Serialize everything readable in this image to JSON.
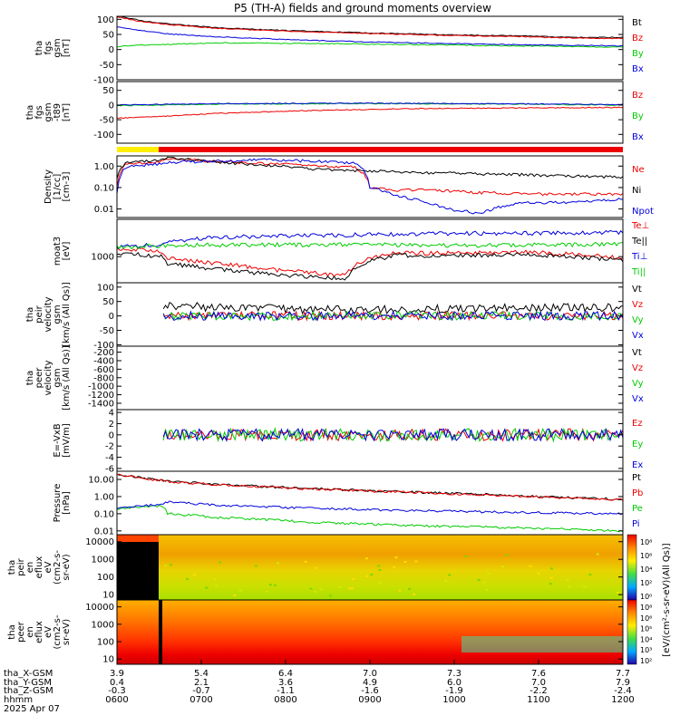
{
  "title": "P5 (TH-A) fields and ground moments overview",
  "colors": {
    "black": "#000000",
    "red": "#ee0000",
    "green": "#00cc00",
    "blue": "#0000dd",
    "yellow": "#ffee00"
  },
  "chart_data": [
    {
      "type": "line",
      "panel": "fgs",
      "ylabel": [
        "tha",
        "fgs",
        "gsm",
        "[nT]"
      ],
      "yticks": [
        "100",
        "50",
        "0",
        "-50",
        "-100"
      ],
      "ylim": [
        -100,
        110
      ],
      "series": [
        {
          "name": "Bt",
          "color": "black",
          "x": [
            0,
            0.05,
            0.1,
            0.2,
            0.35,
            0.5,
            0.65,
            0.8,
            0.9,
            1
          ],
          "values": [
            112,
            95,
            85,
            72,
            62,
            55,
            49,
            45,
            40,
            40
          ]
        },
        {
          "name": "Bz",
          "color": "red",
          "x": [
            0,
            0.05,
            0.1,
            0.2,
            0.35,
            0.5,
            0.65,
            0.8,
            0.9,
            1
          ],
          "values": [
            108,
            92,
            83,
            70,
            60,
            53,
            47,
            43,
            38,
            37
          ]
        },
        {
          "name": "By",
          "color": "green",
          "x": [
            0,
            0.05,
            0.2,
            0.4,
            0.6,
            0.8,
            1
          ],
          "values": [
            10,
            15,
            22,
            20,
            16,
            12,
            8
          ]
        },
        {
          "name": "Bx",
          "color": "blue",
          "x": [
            0,
            0.05,
            0.1,
            0.2,
            0.35,
            0.5,
            0.65,
            0.8,
            1
          ],
          "values": [
            75,
            62,
            52,
            42,
            32,
            25,
            20,
            16,
            12
          ]
        }
      ]
    },
    {
      "type": "line",
      "panel": "fgs-detrended",
      "ylabel": [
        "tha",
        "fgs",
        "gsm",
        "-t89",
        "[nT]"
      ],
      "yticks": [
        "100",
        "50",
        "0",
        "-50",
        "-100"
      ],
      "ylim": [
        -130,
        80
      ],
      "series": [
        {
          "name": "Bz",
          "color": "red",
          "x": [
            0,
            0.1,
            0.2,
            0.4,
            0.6,
            0.8,
            1
          ],
          "values": [
            -45,
            -38,
            -28,
            -18,
            -12,
            -10,
            -8
          ]
        },
        {
          "name": "By",
          "color": "green",
          "x": [
            0,
            0.2,
            0.5,
            0.8,
            1
          ],
          "values": [
            -2,
            3,
            5,
            3,
            0
          ]
        },
        {
          "name": "Bx",
          "color": "blue",
          "x": [
            0,
            0.2,
            0.5,
            0.8,
            1
          ],
          "values": [
            0,
            5,
            6,
            4,
            2
          ]
        }
      ]
    },
    {
      "type": "line",
      "panel": "density",
      "scale": "log",
      "ylabel": [
        "Density",
        "[1/cc]",
        "[cm-3]"
      ],
      "yticks": [
        "1.00",
        "0.10",
        "0.01"
      ],
      "ylim": [
        0.004,
        3
      ],
      "series": [
        {
          "name": "Ne",
          "color": "red",
          "x": [
            0,
            0.02,
            0.09,
            0.1,
            0.2,
            0.4,
            0.47,
            0.5,
            0.55,
            0.6,
            0.7,
            0.8,
            0.9,
            1
          ],
          "values": [
            0.1,
            1.3,
            1.6,
            2.2,
            1.6,
            1.0,
            0.9,
            0.1,
            0.07,
            0.08,
            0.06,
            0.05,
            0.05,
            0.05
          ]
        },
        {
          "name": "Ni",
          "color": "black",
          "x": [
            0,
            0.02,
            0.09,
            0.1,
            0.2,
            0.4,
            0.6,
            0.8,
            1
          ],
          "values": [
            0.3,
            1.6,
            1.9,
            2.4,
            1.5,
            0.7,
            0.5,
            0.4,
            0.3
          ]
        },
        {
          "name": "Npot",
          "color": "blue",
          "x": [
            0,
            0.02,
            0.09,
            0.1,
            0.3,
            0.47,
            0.5,
            0.55,
            0.65,
            0.72,
            0.8,
            0.9,
            1
          ],
          "values": [
            0.05,
            1.0,
            1.3,
            1.5,
            2.0,
            1.4,
            0.1,
            0.04,
            0.01,
            0.006,
            0.02,
            0.02,
            0.03
          ]
        }
      ]
    },
    {
      "type": "line",
      "panel": "temperature",
      "scale": "log",
      "ylabel": [
        "moat3",
        "[eV]"
      ],
      "yticks": [
        "1000"
      ],
      "ylim": [
        150,
        15000
      ],
      "series": [
        {
          "name": "Te⊥",
          "color": "red",
          "x": [
            0,
            0.09,
            0.1,
            0.2,
            0.3,
            0.45,
            0.5,
            0.55,
            0.7,
            0.8,
            0.9,
            1
          ],
          "values": [
            1800,
            1500,
            900,
            600,
            400,
            250,
            900,
            1300,
            1300,
            1400,
            1200,
            900
          ]
        },
        {
          "name": "Te||",
          "color": "black",
          "x": [
            0,
            0.09,
            0.1,
            0.2,
            0.3,
            0.45,
            0.5,
            0.55,
            0.7,
            0.8,
            0.9,
            1
          ],
          "values": [
            1300,
            1000,
            600,
            400,
            280,
            200,
            700,
            1100,
            1100,
            1200,
            1000,
            800
          ]
        },
        {
          "name": "Ti⊥",
          "color": "blue",
          "x": [
            0,
            0.09,
            0.1,
            0.2,
            0.3,
            0.5,
            0.7,
            0.9,
            1
          ],
          "values": [
            2000,
            2400,
            3000,
            4000,
            4500,
            5000,
            5500,
            5500,
            6000
          ]
        },
        {
          "name": "Ti||",
          "color": "green",
          "x": [
            0,
            0.09,
            0.1,
            0.3,
            0.5,
            0.7,
            0.9,
            1
          ],
          "values": [
            2000,
            2200,
            2300,
            2400,
            2400,
            2300,
            2400,
            2500
          ]
        }
      ]
    },
    {
      "type": "line",
      "panel": "peir-velocity",
      "ylabel": [
        "tha",
        "peir",
        "velocity",
        "gsm",
        "[km/s (All Qs)]"
      ],
      "yticks": [
        "100",
        "50",
        "0",
        "-50",
        "-100"
      ],
      "ylim": [
        -105,
        115
      ],
      "series": [
        {
          "name": "Vt",
          "color": "black",
          "x": [
            0.09,
            0.3,
            0.5,
            0.7,
            1
          ],
          "values": [
            35,
            25,
            20,
            25,
            30
          ]
        },
        {
          "name": "Vz",
          "color": "red",
          "x": [
            0.09,
            0.3,
            0.5,
            0.7,
            1
          ],
          "values": [
            0,
            0,
            0,
            0,
            0
          ]
        },
        {
          "name": "Vy",
          "color": "green",
          "x": [
            0.09,
            0.3,
            0.5,
            0.7,
            1
          ],
          "values": [
            0,
            0,
            0,
            0,
            0
          ]
        },
        {
          "name": "Vx",
          "color": "blue",
          "x": [
            0.09,
            0.3,
            0.5,
            0.7,
            1
          ],
          "values": [
            0,
            0,
            0,
            0,
            0
          ]
        }
      ]
    },
    {
      "type": "line",
      "panel": "peer-velocity",
      "ylabel": [
        "tha",
        "peer",
        "velocity",
        "gsm",
        "[km/s (All Qs)]"
      ],
      "yticks": [
        "-200",
        "-400",
        "-600",
        "-800",
        "-1000",
        "-1200",
        "-1400"
      ],
      "ylim": [
        -1550,
        -60
      ],
      "series": [
        {
          "name": "Vt",
          "color": "black",
          "x": [],
          "values": []
        },
        {
          "name": "Vz",
          "color": "red",
          "x": [],
          "values": []
        },
        {
          "name": "Vy",
          "color": "green",
          "x": [],
          "values": []
        },
        {
          "name": "Vx",
          "color": "blue",
          "x": [],
          "values": []
        }
      ]
    },
    {
      "type": "line",
      "panel": "efield",
      "ylabel": [
        "E=-VxB",
        "[mV/m]"
      ],
      "yticks": [
        "4",
        "2",
        "0",
        "-2",
        "-4",
        "-6"
      ],
      "ylim": [
        -6.5,
        4.5
      ],
      "series": [
        {
          "name": "Ez",
          "color": "red",
          "x": [
            0.09,
            0.5,
            1
          ],
          "values": [
            0,
            0,
            0
          ]
        },
        {
          "name": "Ey",
          "color": "green",
          "x": [
            0.09,
            0.5,
            1
          ],
          "values": [
            0,
            0,
            0
          ]
        },
        {
          "name": "Ex",
          "color": "blue",
          "x": [
            0.09,
            0.5,
            1
          ],
          "values": [
            0,
            0,
            0
          ]
        }
      ]
    },
    {
      "type": "line",
      "panel": "pressure",
      "scale": "log",
      "ylabel": [
        "Pressure",
        "[nPa]"
      ],
      "yticks": [
        "10.00",
        "1.00",
        "0.10",
        "0.01"
      ],
      "ylim": [
        0.006,
        30
      ],
      "series": [
        {
          "name": "Pt",
          "color": "black",
          "x": [
            0,
            0.05,
            0.1,
            0.2,
            0.35,
            0.5,
            0.65,
            0.8,
            0.9,
            1
          ],
          "values": [
            20,
            12,
            8,
            5,
            3.2,
            2.2,
            1.6,
            1.1,
            0.85,
            0.7
          ]
        },
        {
          "name": "Pb",
          "color": "red",
          "x": [
            0,
            0.05,
            0.1,
            0.2,
            0.35,
            0.5,
            0.65,
            0.8,
            0.9,
            1
          ],
          "values": [
            19,
            11.5,
            7.6,
            4.8,
            3.0,
            2.1,
            1.5,
            1.05,
            0.8,
            0.65
          ]
        },
        {
          "name": "Pe",
          "color": "green",
          "x": [
            0,
            0.09,
            0.1,
            0.2,
            0.4,
            0.6,
            0.8,
            1
          ],
          "values": [
            0.2,
            0.3,
            0.1,
            0.06,
            0.03,
            0.02,
            0.015,
            0.01
          ]
        },
        {
          "name": "Pi",
          "color": "blue",
          "x": [
            0,
            0.09,
            0.1,
            0.2,
            0.4,
            0.6,
            0.8,
            1
          ],
          "values": [
            0.2,
            0.35,
            0.5,
            0.3,
            0.2,
            0.15,
            0.12,
            0.1
          ]
        }
      ]
    },
    {
      "type": "heatmap",
      "panel": "peir-spectrogram",
      "scale": "log",
      "ylabel": [
        "tha",
        "peir",
        "en",
        "eflux",
        "eV",
        "(cm2-s-",
        "sr-eV)"
      ],
      "yticks": [
        "10000",
        "1000",
        "100",
        "10"
      ],
      "ylim": [
        5,
        25000
      ]
    },
    {
      "type": "heatmap",
      "panel": "peer-spectrogram",
      "scale": "log",
      "ylabel": [
        "tha",
        "peer",
        "en",
        "eflux",
        "eV",
        "(cm2-s-",
        "sr-eV)"
      ],
      "yticks": [
        "10000",
        "1000",
        "100",
        "10"
      ],
      "ylim": [
        5,
        25000
      ]
    }
  ],
  "colorbar": {
    "label": "[eV/(cm²-s-sr-eV)(All Qs)]",
    "ticks1": [
      "10⁸",
      "10⁶",
      "10⁴",
      "10²",
      "10⁰"
    ],
    "ticks2": [
      "10⁸",
      "10⁶",
      "10⁵",
      "10⁴",
      "10³",
      "10²"
    ]
  },
  "xaxis": {
    "rows": [
      {
        "label": "tha_X-GSM",
        "values": [
          "3.9",
          "5.4",
          "6.4",
          "7.0",
          "7.3",
          "7.6",
          "7.7"
        ]
      },
      {
        "label": "tha_Y-GSM",
        "values": [
          "0.4",
          "2.1",
          "3.6",
          "4.9",
          "6.0",
          "7.0",
          "7.9"
        ]
      },
      {
        "label": "tha_Z-GSM",
        "values": [
          "-0.3",
          "-0.7",
          "-1.1",
          "-1.6",
          "-1.9",
          "-2.2",
          "-2.4"
        ]
      },
      {
        "label": "hhmm",
        "values": [
          "0600",
          "0700",
          "0800",
          "0900",
          "1000",
          "1100",
          "1200"
        ]
      }
    ],
    "date": "2025 Apr 07"
  }
}
